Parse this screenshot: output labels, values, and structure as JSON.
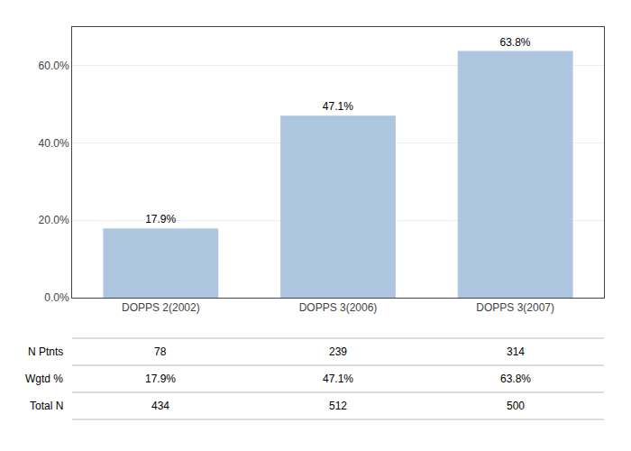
{
  "chart_data": {
    "type": "bar",
    "categories": [
      "DOPPS 2(2002)",
      "DOPPS 3(2006)",
      "DOPPS 3(2007)"
    ],
    "values": [
      17.9,
      47.1,
      63.8
    ],
    "value_labels": [
      "17.9%",
      "47.1%",
      "63.8%"
    ],
    "data_labels": true,
    "color": "#aec6df",
    "ylim": [
      0,
      70
    ],
    "yticks": [
      {
        "value": 0,
        "label": "0.0%"
      },
      {
        "value": 20,
        "label": "20.0%"
      },
      {
        "value": 40,
        "label": "40.0%"
      },
      {
        "value": 60,
        "label": "60.0%"
      }
    ],
    "grid": true,
    "table_rows": [
      [
        "N Ptnts",
        "78",
        "239",
        "314"
      ],
      [
        "Wgtd %",
        "17.9%",
        "47.1%",
        "63.8%"
      ],
      [
        "Total N",
        "434",
        "512",
        "500"
      ]
    ]
  }
}
